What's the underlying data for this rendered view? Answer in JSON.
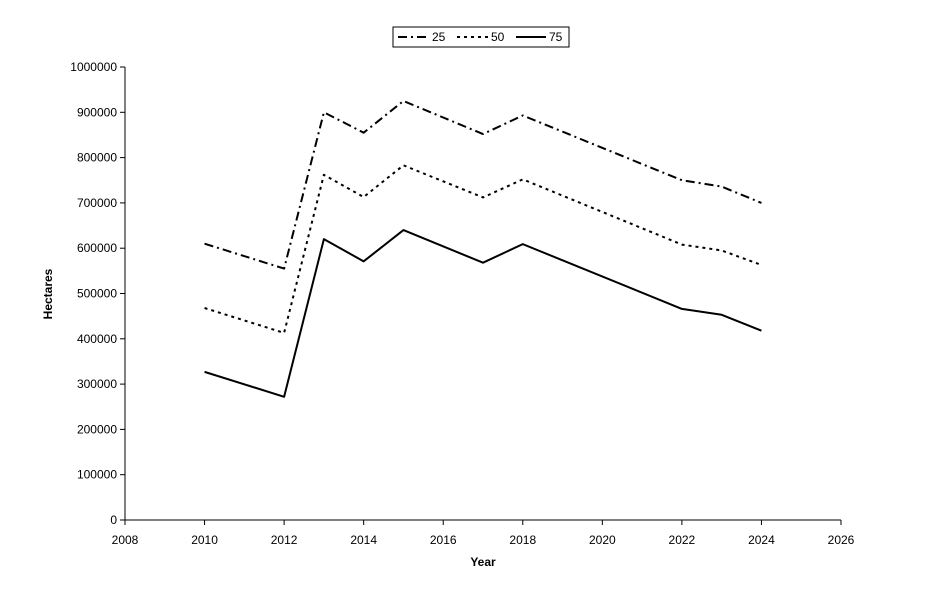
{
  "chart_data": {
    "type": "line",
    "title": "",
    "xlabel": "Year",
    "ylabel": "Hectares",
    "xlim": [
      2008,
      2026
    ],
    "ylim": [
      0,
      1000000
    ],
    "x_ticks": [
      "2008",
      "2010",
      "2012",
      "2014",
      "2016",
      "2018",
      "2020",
      "2022",
      "2024",
      "2026"
    ],
    "y_ticks": [
      "0",
      "100000",
      "200000",
      "300000",
      "400000",
      "500000",
      "600000",
      "700000",
      "800000",
      "900000",
      "1000000"
    ],
    "grid": false,
    "legend_position": "top-center",
    "x": [
      2010,
      2012,
      2013,
      2014,
      2015,
      2017,
      2018,
      2022,
      2023,
      2024
    ],
    "series": [
      {
        "name": "25",
        "style": "dash-dot",
        "color": "#000000",
        "values": [
          610000,
          555000,
          900000,
          855000,
          925000,
          852000,
          893000,
          750000,
          736000,
          700000
        ]
      },
      {
        "name": "50",
        "style": "dotted",
        "color": "#000000",
        "values": [
          468000,
          413000,
          762000,
          713000,
          783000,
          712000,
          752000,
          608000,
          595000,
          563000
        ]
      },
      {
        "name": "75",
        "style": "solid",
        "color": "#000000",
        "values": [
          327000,
          272000,
          620000,
          571000,
          640000,
          568000,
          609000,
          466000,
          453000,
          418000
        ]
      }
    ]
  }
}
